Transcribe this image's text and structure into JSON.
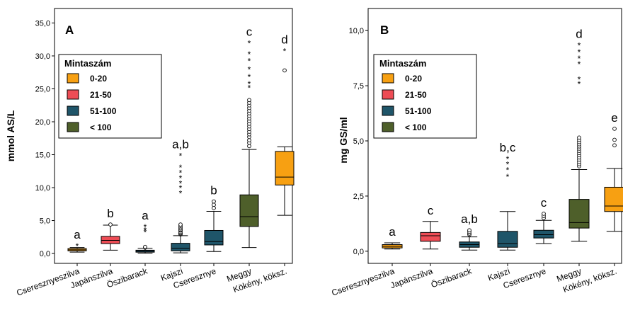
{
  "chart_data": [
    {
      "type": "boxplot",
      "panel_label": "A",
      "ylabel": "mmol  AS/L",
      "ylim": [
        -1.5,
        37.2
      ],
      "yticks": [
        "0,0",
        "5,0",
        "10,0",
        "15,0",
        "20,0",
        "25,0",
        "30,0",
        "35,0"
      ],
      "ytick_values": [
        0,
        5,
        10,
        15,
        20,
        25,
        30,
        35
      ],
      "categories": [
        "Cseresznyeszilva",
        "Japánszilva",
        "Öszibarack",
        "Kajszi",
        "Cseresznye",
        "Meggy",
        "Kökény, köksz."
      ],
      "boxes": [
        {
          "category": "Cseresznyeszilva",
          "group": "0-20",
          "min": 0.2,
          "q1": 0.4,
          "median": 0.55,
          "q3": 0.75,
          "max": 0.9,
          "outliers": [],
          "extremes": [
            1.2
          ],
          "letter": "a"
        },
        {
          "category": "Japánszilva",
          "group": "21-50",
          "min": 0.5,
          "q1": 1.5,
          "median": 2.0,
          "q3": 2.6,
          "max": 4.3,
          "outliers": [
            4.4
          ],
          "extremes": [],
          "letter": "b"
        },
        {
          "category": "Öszibarack",
          "group": "51-100",
          "min": 0.05,
          "q1": 0.2,
          "median": 0.35,
          "q3": 0.5,
          "max": 0.8,
          "outliers": [
            0.9,
            1.0
          ],
          "extremes": [
            3.3,
            3.6,
            4.1
          ],
          "letter": "a"
        },
        {
          "category": "Kajszi",
          "group": "51-100",
          "min": 0.1,
          "q1": 0.4,
          "median": 0.8,
          "q3": 1.55,
          "max": 2.7,
          "outliers": [
            2.9,
            3.0,
            3.1,
            3.3,
            3.5,
            3.6,
            3.8,
            4.0,
            4.2,
            4.4
          ],
          "extremes": [
            9.2,
            10.0,
            10.7,
            11.5,
            12.3,
            13.1,
            14.9
          ],
          "letter": "a,b"
        },
        {
          "category": "Cseresznye",
          "group": "51-100",
          "min": 0.3,
          "q1": 1.3,
          "median": 1.8,
          "q3": 3.5,
          "max": 6.4,
          "outliers": [
            6.9,
            7.4,
            7.9
          ],
          "extremes": [],
          "letter": "b"
        },
        {
          "category": "Meggy",
          "group": "< 100",
          "min": 0.9,
          "q1": 4.1,
          "median": 5.6,
          "q3": 8.9,
          "max": 15.8,
          "outliers": [
            16.3,
            16.8,
            17.2,
            17.7,
            18.1,
            18.5,
            18.9,
            19.3,
            19.7,
            20.1,
            20.5,
            20.9,
            21.3,
            21.7,
            22.1,
            22.5,
            22.9,
            23.3
          ],
          "extremes": [
            25.2,
            25.8,
            26.9,
            28.0,
            29.3,
            30.3,
            32.0
          ],
          "letter": "c"
        },
        {
          "category": "Kökény, köksz.",
          "group": "0-20",
          "min": 5.8,
          "q1": 10.4,
          "median": 11.6,
          "q3": 15.5,
          "max": 16.2,
          "outliers": [
            27.8
          ],
          "extremes": [
            30.8
          ],
          "letter": "d"
        }
      ]
    },
    {
      "type": "boxplot",
      "panel_label": "B",
      "ylabel": "mg GS/ml",
      "ylim": [
        -0.55,
        11.0
      ],
      "yticks": [
        "0,0",
        "2,5",
        "5,0",
        "7,5",
        "10,0"
      ],
      "ytick_values": [
        0,
        2.5,
        5,
        7.5,
        10
      ],
      "categories": [
        "Cseresznyeszilva",
        "Japánszilva",
        "Öszibarack",
        "Kajszi",
        "Cseresznye",
        "Meggy",
        "Kökény, köksz."
      ],
      "boxes": [
        {
          "category": "Cseresznyeszilva",
          "group": "0-20",
          "min": 0.1,
          "q1": 0.15,
          "median": 0.22,
          "q3": 0.3,
          "max": 0.38,
          "outliers": [],
          "extremes": [],
          "letter": "a"
        },
        {
          "category": "Japánszilva",
          "group": "21-50",
          "min": 0.1,
          "q1": 0.45,
          "median": 0.7,
          "q3": 0.85,
          "max": 1.35,
          "outliers": [],
          "extremes": [],
          "letter": "c"
        },
        {
          "category": "Öszibarack",
          "group": "51-100",
          "min": 0.05,
          "q1": 0.18,
          "median": 0.3,
          "q3": 0.42,
          "max": 0.65,
          "outliers": [
            0.75,
            0.8,
            0.88,
            0.95
          ],
          "extremes": [],
          "letter": "a,b"
        },
        {
          "category": "Kajszi",
          "group": "51-100",
          "min": 0.05,
          "q1": 0.18,
          "median": 0.35,
          "q3": 0.9,
          "max": 1.8,
          "outliers": [],
          "extremes": [
            3.4,
            3.7,
            3.95,
            4.2
          ],
          "letter": "b,c"
        },
        {
          "category": "Cseresznye",
          "group": "51-100",
          "min": 0.35,
          "q1": 0.6,
          "median": 0.75,
          "q3": 0.95,
          "max": 1.4,
          "outliers": [
            1.5,
            1.6,
            1.7
          ],
          "extremes": [],
          "letter": "c"
        },
        {
          "category": "Meggy",
          "group": "< 100",
          "min": 0.45,
          "q1": 1.05,
          "median": 1.3,
          "q3": 2.35,
          "max": 3.7,
          "outliers": [
            3.85,
            3.95,
            4.05,
            4.15,
            4.25,
            4.35,
            4.45,
            4.55,
            4.65,
            4.75,
            4.85,
            4.95,
            5.05,
            5.15
          ],
          "extremes": [
            7.6,
            7.8,
            8.5,
            8.75,
            9.05,
            9.35
          ],
          "letter": "d"
        },
        {
          "category": "Kökény, köksz.",
          "group": "0-20",
          "min": 0.9,
          "q1": 1.8,
          "median": 2.05,
          "q3": 2.9,
          "max": 3.75,
          "outliers": [
            4.8,
            5.05,
            5.55
          ],
          "extremes": [],
          "letter": "e"
        }
      ]
    }
  ],
  "legend": {
    "title": "Mintaszám",
    "items": [
      {
        "label": "0-20",
        "color": "#F7A012"
      },
      {
        "label": "21-50",
        "color": "#EE4C55"
      },
      {
        "label": "51-100",
        "color": "#1F5569"
      },
      {
        "label": "< 100",
        "color": "#4E5F2A"
      }
    ]
  }
}
